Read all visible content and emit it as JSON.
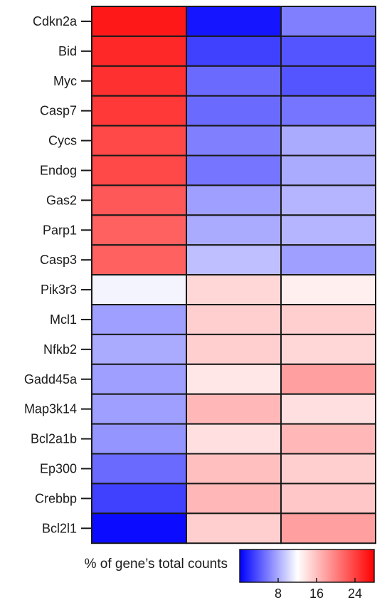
{
  "chart_data": {
    "type": "heatmap",
    "rows": [
      "Cdkn2a",
      "Bid",
      "Myc",
      "Casp7",
      "Cycs",
      "Endog",
      "Gas2",
      "Parp1",
      "Casp3",
      "Pik3r3",
      "Mcl1",
      "Nfkb2",
      "Gadd45a",
      "Map3k14",
      "Bcl2a1b",
      "Ep300",
      "Crebbp",
      "Bcl2l1"
    ],
    "values": [
      [
        26.5,
        1.0,
        6.0
      ],
      [
        25.5,
        3.0,
        4.0
      ],
      [
        25.0,
        5.0,
        4.0
      ],
      [
        24.5,
        5.0,
        5.5
      ],
      [
        23.5,
        6.0,
        8.0
      ],
      [
        23.5,
        5.5,
        8.0
      ],
      [
        22.5,
        7.5,
        8.5
      ],
      [
        22.0,
        8.0,
        8.5
      ],
      [
        22.0,
        9.0,
        7.5
      ],
      [
        11.5,
        14.5,
        13.0
      ],
      [
        7.5,
        15.0,
        15.0
      ],
      [
        8.0,
        15.0,
        14.5
      ],
      [
        7.5,
        13.5,
        18.0
      ],
      [
        7.5,
        16.5,
        14.0
      ],
      [
        7.0,
        14.0,
        16.5
      ],
      [
        5.0,
        16.0,
        15.0
      ],
      [
        3.0,
        16.5,
        15.5
      ],
      [
        0.5,
        15.0,
        18.0
      ]
    ],
    "colorbar": {
      "title": "% of gene’s total counts",
      "min": 0,
      "mid": 12,
      "max": 28,
      "ticks": [
        8,
        16,
        24
      ],
      "tick_labels": [
        "8",
        "16",
        "24"
      ],
      "colors": {
        "low": "#0000ff",
        "mid": "#ffffff",
        "high": "#ff0000"
      }
    }
  }
}
